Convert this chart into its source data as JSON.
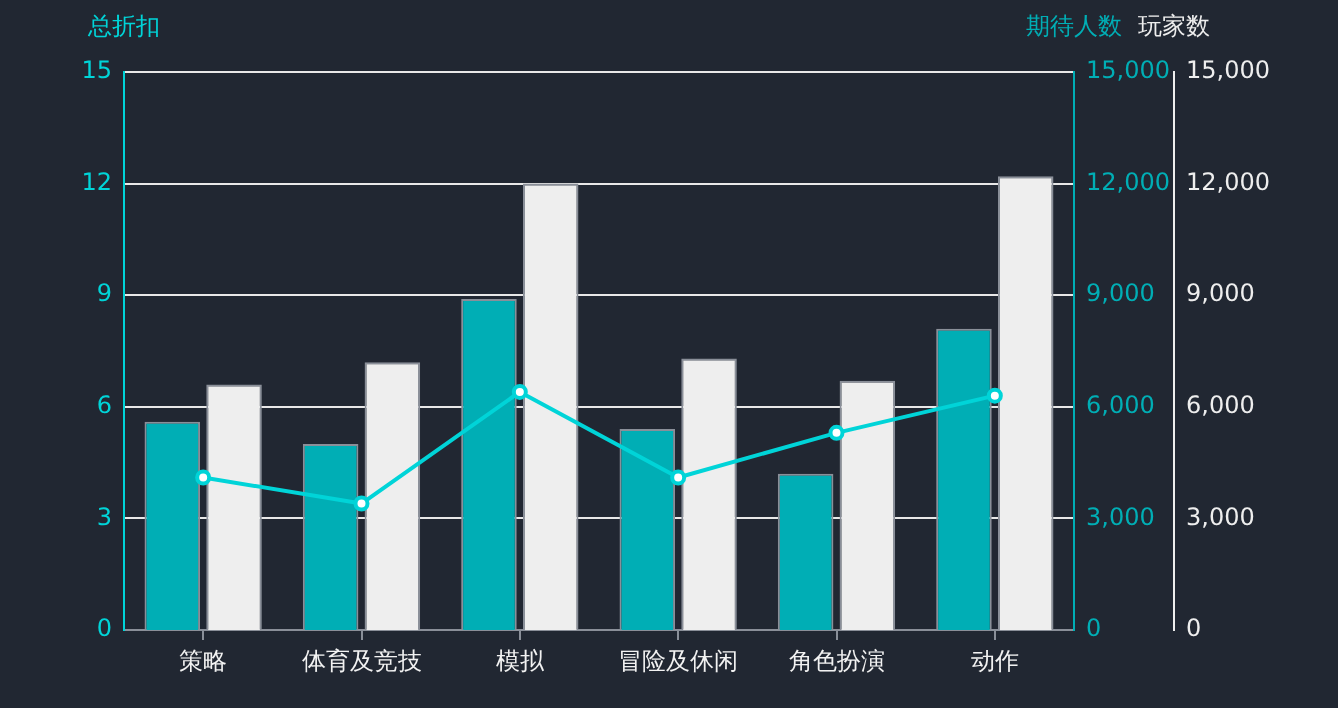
{
  "chart_data": {
    "type": "bar",
    "categories": [
      "策略",
      "体育及竞技",
      "模拟",
      "冒险及休闲",
      "角色扮演",
      "动作"
    ],
    "ylabel": "总折扣",
    "y2label": "期待人数",
    "y3label": "玩家数",
    "ylim": [
      0,
      15
    ],
    "yticks": [
      0,
      3,
      6,
      9,
      12,
      15
    ],
    "y2lim": [
      0,
      15000
    ],
    "y2ticks": [
      {
        "value": 0,
        "label": "0"
      },
      {
        "value": 3000,
        "label": "3,000"
      },
      {
        "value": 6000,
        "label": "6,000"
      },
      {
        "value": 9000,
        "label": "9,000"
      },
      {
        "value": 12000,
        "label": "12,000"
      },
      {
        "value": 15000,
        "label": "15,000"
      }
    ],
    "y3lim": [
      0,
      15000
    ],
    "y3ticks": [
      {
        "value": 0,
        "label": "0"
      },
      {
        "value": 3000,
        "label": "3,000"
      },
      {
        "value": 6000,
        "label": "6,000"
      },
      {
        "value": 9000,
        "label": "9,000"
      },
      {
        "value": 12000,
        "label": "12,000"
      },
      {
        "value": 15000,
        "label": "15,000"
      }
    ],
    "grid": "y",
    "marker": "circle",
    "line_style": "solid",
    "series": [
      {
        "axis": "y2",
        "color": "#00aeb5",
        "values": [
          5600,
          5000,
          8900,
          5400,
          4200,
          8100
        ]
      },
      {
        "axis": "y3",
        "color": "#eeeeee",
        "values": [
          6600,
          7200,
          12000,
          7300,
          6700,
          12200
        ]
      },
      {
        "type": "line",
        "color": "#00d4d8",
        "values": [
          4.1,
          3.4,
          6.4,
          4.1,
          5.3,
          6.3
        ]
      }
    ]
  }
}
